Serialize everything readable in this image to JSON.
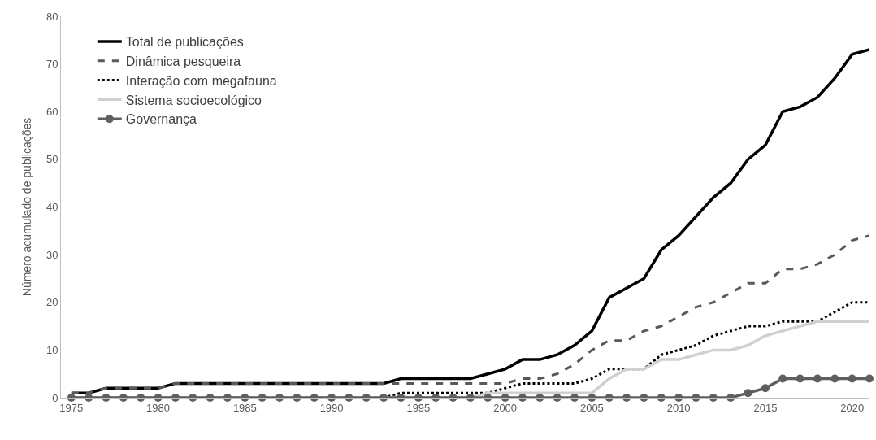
{
  "chart_data": {
    "type": "line",
    "ylabel": "Número acumulado de publicações",
    "x": [
      1975,
      1976,
      1977,
      1978,
      1979,
      1980,
      1981,
      1982,
      1983,
      1984,
      1985,
      1986,
      1987,
      1988,
      1989,
      1990,
      1991,
      1992,
      1993,
      1994,
      1995,
      1996,
      1997,
      1998,
      1999,
      2000,
      2001,
      2002,
      2003,
      2004,
      2005,
      2006,
      2007,
      2008,
      2009,
      2010,
      2011,
      2012,
      2013,
      2014,
      2015,
      2016,
      2017,
      2018,
      2019,
      2020,
      2021
    ],
    "series": [
      {
        "name": "Total de publicações",
        "color": "#000000",
        "line_style": "solid",
        "marker": "none",
        "values": [
          1,
          1,
          2,
          2,
          2,
          2,
          3,
          3,
          3,
          3,
          3,
          3,
          3,
          3,
          3,
          3,
          3,
          3,
          3,
          4,
          4,
          4,
          4,
          4,
          5,
          6,
          8,
          8,
          9,
          11,
          14,
          21,
          23,
          25,
          31,
          34,
          38,
          42,
          45,
          50,
          53,
          60,
          61,
          63,
          67,
          72,
          73
        ]
      },
      {
        "name": "Dinâmica pesqueira",
        "color": "#595959",
        "line_style": "dashed",
        "marker": "none",
        "values": [
          1,
          1,
          2,
          2,
          2,
          2,
          3,
          3,
          3,
          3,
          3,
          3,
          3,
          3,
          3,
          3,
          3,
          3,
          3,
          3,
          3,
          3,
          3,
          3,
          3,
          3,
          4,
          4,
          5,
          7,
          10,
          12,
          12,
          14,
          15,
          17,
          19,
          20,
          22,
          24,
          24,
          27,
          27,
          28,
          30,
          33,
          34
        ]
      },
      {
        "name": "Interação com megafauna",
        "color": "#000000",
        "line_style": "dotted",
        "marker": "none",
        "values": [
          0,
          0,
          0,
          0,
          0,
          0,
          0,
          0,
          0,
          0,
          0,
          0,
          0,
          0,
          0,
          0,
          0,
          0,
          0,
          1,
          1,
          1,
          1,
          1,
          1,
          2,
          3,
          3,
          3,
          3,
          4,
          6,
          6,
          6,
          9,
          10,
          11,
          13,
          14,
          15,
          15,
          16,
          16,
          16,
          18,
          20,
          20
        ]
      },
      {
        "name": "Sistema socioecológico",
        "color": "#d0d0d0",
        "line_style": "solid",
        "marker": "none",
        "values": [
          0,
          0,
          0,
          0,
          0,
          0,
          0,
          0,
          0,
          0,
          0,
          0,
          0,
          0,
          0,
          0,
          0,
          0,
          0,
          0,
          0,
          0,
          0,
          0,
          1,
          1,
          1,
          1,
          1,
          1,
          1,
          4,
          6,
          6,
          8,
          8,
          9,
          10,
          10,
          11,
          13,
          14,
          15,
          16,
          16,
          16,
          16
        ]
      },
      {
        "name": "Governança",
        "color": "#5f5f5f",
        "line_style": "solid",
        "marker": "circle",
        "values": [
          0,
          0,
          0,
          0,
          0,
          0,
          0,
          0,
          0,
          0,
          0,
          0,
          0,
          0,
          0,
          0,
          0,
          0,
          0,
          0,
          0,
          0,
          0,
          0,
          0,
          0,
          0,
          0,
          0,
          0,
          0,
          0,
          0,
          0,
          0,
          0,
          0,
          0,
          0,
          1,
          2,
          4,
          4,
          4,
          4,
          4,
          4
        ]
      }
    ],
    "xlim": [
      1974.4,
      2021
    ],
    "xticks": [
      1975,
      1980,
      1985,
      1990,
      1995,
      2000,
      2005,
      2010,
      2015,
      2020
    ],
    "ylim": [
      0,
      80
    ],
    "yticks": [
      0,
      10,
      20,
      30,
      40,
      50,
      60,
      70,
      80
    ],
    "legend": "top left"
  }
}
